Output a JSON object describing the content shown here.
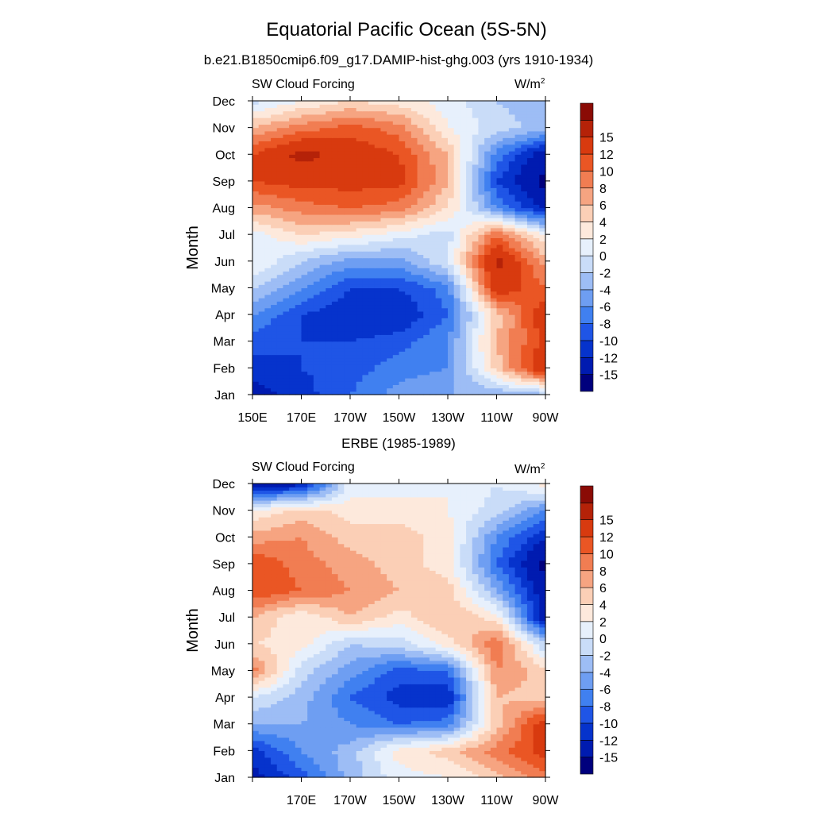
{
  "figure": {
    "title": "Equatorial Pacific Ocean (5S-5N)",
    "subtitle": "b.e21.B1850cmip6.f09_g17.DAMIP-hist-ghg.003 (yrs 1910-1934)"
  },
  "panels": [
    {
      "panel_title": "",
      "left_label": "SW Cloud Forcing",
      "units_base": "W/m",
      "units_exp": "2",
      "ylabel": "Month",
      "y_ticks": [
        "Jan",
        "Feb",
        "Mar",
        "Apr",
        "May",
        "Jun",
        "Jul",
        "Aug",
        "Sep",
        "Oct",
        "Nov",
        "Dec"
      ],
      "x_ticks": [
        "150E",
        "170E",
        "170W",
        "150W",
        "130W",
        "110W",
        "90W"
      ]
    },
    {
      "panel_title": "ERBE (1985-1989)",
      "left_label": "SW Cloud Forcing",
      "units_base": "W/m",
      "units_exp": "2",
      "ylabel": "Month",
      "y_ticks": [
        "Jan",
        "Feb",
        "Mar",
        "Apr",
        "May",
        "Jun",
        "Jul",
        "Aug",
        "Sep",
        "Oct",
        "Nov",
        "Dec"
      ],
      "x_ticks": [
        "",
        "170E",
        "170W",
        "150W",
        "130W",
        "110W",
        "90W"
      ]
    }
  ],
  "colorbar": {
    "labels": [
      "-15",
      "-12",
      "-10",
      "-8",
      "-6",
      "-4",
      "-2",
      "0",
      "2",
      "4",
      "6",
      "8",
      "10",
      "12",
      "15"
    ],
    "colors": [
      "#00007d",
      "#001bb0",
      "#0633cc",
      "#1f55e6",
      "#4080f0",
      "#6e9ef2",
      "#9dbdf5",
      "#c9dcf8",
      "#e7f0fc",
      "#fde9dc",
      "#fbcfb6",
      "#f6a481",
      "#f17d52",
      "#ea5624",
      "#d83a0f",
      "#b52208",
      "#8a0b05"
    ]
  },
  "chart_data": [
    {
      "type": "heatmap",
      "title": "",
      "xlabel": "",
      "ylabel": "Month",
      "x": [
        "150E",
        "170E",
        "170W",
        "150W",
        "130W",
        "110W",
        "90W"
      ],
      "y": [
        "Jan",
        "Feb",
        "Mar",
        "Apr",
        "May",
        "Jun",
        "Jul",
        "Aug",
        "Sep",
        "Oct",
        "Nov",
        "Dec"
      ],
      "values": [
        [
          -13,
          -11,
          -8,
          -5,
          -4,
          -4,
          -3
        ],
        [
          -11,
          -10,
          -9,
          -7,
          -6,
          5,
          15
        ],
        [
          -9,
          -10,
          -10,
          -9,
          -6,
          6,
          13
        ],
        [
          -6,
          -10,
          -12,
          -12,
          -8,
          5,
          14
        ],
        [
          -2,
          -6,
          -10,
          -10,
          -7,
          14,
          10
        ],
        [
          2,
          -2,
          -5,
          -5,
          0,
          16,
          7
        ],
        [
          1,
          4,
          3,
          1,
          -1,
          10,
          2
        ],
        [
          7,
          9,
          10,
          9,
          4,
          -6,
          -13
        ],
        [
          12,
          13,
          13,
          13,
          6,
          -10,
          -16
        ],
        [
          12,
          16,
          14,
          12,
          6,
          -7,
          -14
        ],
        [
          6,
          9,
          11,
          9,
          2,
          -1,
          -3
        ],
        [
          -1,
          2,
          4,
          3,
          1,
          -2,
          -3
        ]
      ],
      "zlevels": [
        -15,
        -12,
        -10,
        -8,
        -6,
        -4,
        -2,
        0,
        2,
        4,
        6,
        8,
        10,
        12,
        15
      ]
    },
    {
      "type": "heatmap",
      "title": "ERBE (1985-1989)",
      "xlabel": "",
      "ylabel": "Month",
      "x": [
        "150E",
        "170E",
        "170W",
        "150W",
        "130W",
        "110W",
        "90W"
      ],
      "y": [
        "Jan",
        "Feb",
        "Mar",
        "Apr",
        "May",
        "Jun",
        "Jul",
        "Aug",
        "Sep",
        "Oct",
        "Nov",
        "Dec"
      ],
      "values": [
        [
          -13,
          -9,
          -3,
          1,
          2,
          5,
          9
        ],
        [
          -11,
          -6,
          -3,
          3,
          5,
          9,
          13
        ],
        [
          -4,
          -4,
          -6,
          -8,
          -7,
          5,
          14
        ],
        [
          0,
          -3,
          -8,
          -11,
          -12,
          6,
          5
        ],
        [
          9,
          -1,
          -5,
          -9,
          -8,
          8,
          5
        ],
        [
          4,
          3,
          -2,
          -1,
          3,
          10,
          -2
        ],
        [
          6,
          2,
          6,
          3,
          6,
          3,
          -14
        ],
        [
          12,
          10,
          8,
          6,
          5,
          -4,
          -14
        ],
        [
          12,
          9,
          7,
          5,
          3,
          -8,
          -16
        ],
        [
          7,
          8,
          5,
          5,
          3,
          -6,
          -12
        ],
        [
          2,
          5,
          3,
          3,
          2,
          -1,
          -6
        ],
        [
          -14,
          -13,
          1,
          1,
          2,
          0,
          3
        ]
      ],
      "zlevels": [
        -15,
        -12,
        -10,
        -8,
        -6,
        -4,
        -2,
        0,
        2,
        4,
        6,
        8,
        10,
        12,
        15
      ]
    }
  ]
}
